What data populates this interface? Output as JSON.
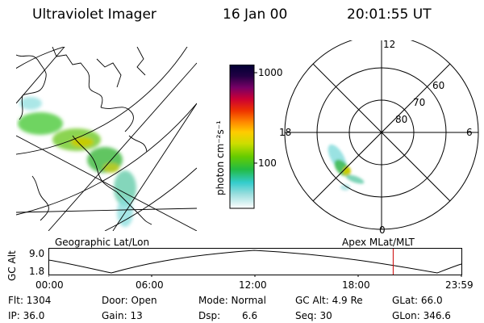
{
  "header": {
    "instrument": "Ultraviolet Imager",
    "date": "16 Jan 00",
    "time": "20:01:55 UT"
  },
  "colorbar": {
    "unit_label": "photon cm⁻²s⁻¹",
    "ticks": [
      "1000",
      "100"
    ]
  },
  "polar_plot": {
    "lat_labels": [
      "60",
      "70",
      "80"
    ],
    "mlt_labels": [
      "12",
      "18",
      "6",
      "0"
    ]
  },
  "projections": {
    "left": "Geographic Lat/Lon",
    "right": "Apex MLat/MLT"
  },
  "altitude_plot": {
    "ylabel": "GC Alt",
    "yticks": [
      "9.0",
      "1.8"
    ],
    "xticks": [
      "00:00",
      "06:00",
      "12:00",
      "18:00",
      "23:59"
    ],
    "marker_color": "#cc0000",
    "current_time_fraction": 0.8347
  },
  "info": {
    "flt": "Flt: 1304",
    "ip": "IP: 36.0",
    "door": "Door: Open",
    "gain": "Gain: 13",
    "mode": "Mode: Normal",
    "dsp_label": "Dsp:",
    "dsp_value": "6.6",
    "gcalt": "GC Alt: 4.9 Re",
    "seq": "Seq: 30",
    "glat": "GLat: 66.0",
    "glon": "GLon: 346.6"
  },
  "colors": {
    "aurora_green": "#33cc33",
    "aurora_yellow": "#cccc00",
    "aurora_cyan": "#66dddd"
  }
}
